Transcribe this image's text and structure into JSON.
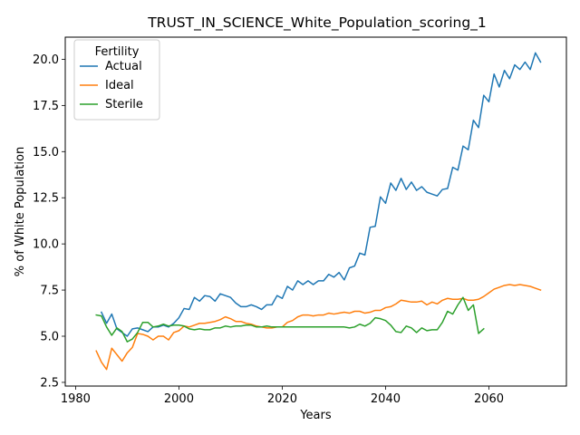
{
  "chart_data": {
    "type": "line",
    "title": "TRUST_IN_SCIENCE_White_Population_scoring_1",
    "xlabel": "Years",
    "ylabel": "% of White Population",
    "xlim": [
      1978,
      2075
    ],
    "ylim": [
      2.3,
      21.2
    ],
    "xticks": [
      1980,
      2000,
      2020,
      2040,
      2060
    ],
    "yticks": [
      2.5,
      5.0,
      7.5,
      10.0,
      12.5,
      15.0,
      17.5,
      20.0
    ],
    "legend": {
      "title": "Fertility",
      "position": "top-left"
    },
    "series": [
      {
        "name": "Actual",
        "color": "#1f77b4",
        "x": [
          1985,
          1986,
          1987,
          1988,
          1989,
          1990,
          1991,
          1992,
          1993,
          1994,
          1995,
          1996,
          1997,
          1998,
          1999,
          2000,
          2001,
          2002,
          2003,
          2004,
          2005,
          2006,
          2007,
          2008,
          2009,
          2010,
          2011,
          2012,
          2013,
          2014,
          2015,
          2016,
          2017,
          2018,
          2019,
          2020,
          2021,
          2022,
          2023,
          2024,
          2025,
          2026,
          2027,
          2028,
          2029,
          2030,
          2031,
          2032,
          2033,
          2034,
          2035,
          2036,
          2037,
          2038,
          2039,
          2040,
          2041,
          2042,
          2043,
          2044,
          2045,
          2046,
          2047,
          2048,
          2049,
          2050,
          2051,
          2052,
          2053,
          2054,
          2055,
          2056,
          2057,
          2058,
          2059,
          2060,
          2061,
          2062,
          2063,
          2064,
          2065,
          2066,
          2067,
          2068,
          2069,
          2070
        ],
        "y": [
          6.3,
          5.7,
          6.2,
          5.4,
          5.2,
          5.0,
          5.4,
          5.45,
          5.35,
          5.25,
          5.5,
          5.5,
          5.6,
          5.5,
          5.7,
          6.0,
          6.5,
          6.45,
          7.1,
          6.9,
          7.2,
          7.15,
          6.9,
          7.3,
          7.2,
          7.1,
          6.8,
          6.6,
          6.6,
          6.7,
          6.6,
          6.45,
          6.7,
          6.7,
          7.2,
          7.05,
          7.7,
          7.5,
          8.0,
          7.8,
          8.0,
          7.8,
          8.0,
          8.0,
          8.35,
          8.2,
          8.45,
          8.05,
          8.7,
          8.8,
          9.5,
          9.4,
          10.9,
          10.95,
          12.55,
          12.2,
          13.3,
          12.9,
          13.55,
          12.95,
          13.35,
          12.9,
          13.1,
          12.8,
          12.7,
          12.6,
          12.95,
          13.0,
          14.15,
          14.0,
          15.3,
          15.1,
          16.7,
          16.3,
          18.05,
          17.7,
          19.2,
          18.5,
          19.4,
          18.95,
          19.7,
          19.45,
          19.85,
          19.45,
          20.35,
          19.85
        ]
      },
      {
        "name": "Ideal",
        "color": "#ff7f0e",
        "x": [
          1984,
          1985,
          1986,
          1987,
          1988,
          1989,
          1990,
          1991,
          1992,
          1993,
          1994,
          1995,
          1996,
          1997,
          1998,
          1999,
          2000,
          2001,
          2002,
          2003,
          2004,
          2005,
          2006,
          2007,
          2008,
          2009,
          2010,
          2011,
          2012,
          2013,
          2014,
          2015,
          2016,
          2017,
          2018,
          2019,
          2020,
          2021,
          2022,
          2023,
          2024,
          2025,
          2026,
          2027,
          2028,
          2029,
          2030,
          2031,
          2032,
          2033,
          2034,
          2035,
          2036,
          2037,
          2038,
          2039,
          2040,
          2041,
          2042,
          2043,
          2044,
          2045,
          2046,
          2047,
          2048,
          2049,
          2050,
          2051,
          2052,
          2053,
          2054,
          2055,
          2056,
          2057,
          2058,
          2059,
          2060,
          2061,
          2062,
          2063,
          2064,
          2065,
          2066,
          2067,
          2068,
          2069,
          2070
        ],
        "y": [
          4.2,
          3.6,
          3.2,
          4.35,
          4.0,
          3.65,
          4.1,
          4.4,
          5.15,
          5.1,
          5.0,
          4.8,
          5.0,
          5.0,
          4.8,
          5.2,
          5.3,
          5.55,
          5.5,
          5.6,
          5.7,
          5.7,
          5.75,
          5.8,
          5.9,
          6.05,
          5.95,
          5.8,
          5.8,
          5.7,
          5.65,
          5.55,
          5.5,
          5.45,
          5.45,
          5.5,
          5.5,
          5.75,
          5.85,
          6.05,
          6.15,
          6.15,
          6.1,
          6.15,
          6.15,
          6.25,
          6.2,
          6.25,
          6.3,
          6.25,
          6.35,
          6.35,
          6.25,
          6.3,
          6.4,
          6.4,
          6.55,
          6.6,
          6.75,
          6.95,
          6.9,
          6.85,
          6.85,
          6.9,
          6.7,
          6.85,
          6.75,
          6.95,
          7.05,
          7.0,
          7.0,
          7.05,
          6.95,
          6.95,
          7.0,
          7.15,
          7.35,
          7.55,
          7.65,
          7.75,
          7.8,
          7.75,
          7.8,
          7.75,
          7.7,
          7.6,
          7.5
        ]
      },
      {
        "name": "Sterile",
        "color": "#2ca02c",
        "x": [
          1984,
          1985,
          1986,
          1987,
          1988,
          1989,
          1990,
          1991,
          1992,
          1993,
          1994,
          1995,
          1996,
          1997,
          1998,
          1999,
          2000,
          2001,
          2002,
          2003,
          2004,
          2005,
          2006,
          2007,
          2008,
          2009,
          2010,
          2011,
          2012,
          2013,
          2014,
          2015,
          2016,
          2017,
          2018,
          2019,
          2020,
          2021,
          2022,
          2023,
          2024,
          2025,
          2026,
          2027,
          2028,
          2029,
          2030,
          2031,
          2032,
          2033,
          2034,
          2035,
          2036,
          2037,
          2038,
          2039,
          2040,
          2041,
          2042,
          2043,
          2044,
          2045,
          2046,
          2047,
          2048,
          2049,
          2050,
          2051,
          2052,
          2053,
          2054,
          2055,
          2056,
          2057,
          2058,
          2059
        ],
        "y": [
          6.15,
          6.1,
          5.5,
          5.05,
          5.45,
          5.25,
          4.7,
          4.85,
          5.2,
          5.75,
          5.75,
          5.5,
          5.55,
          5.65,
          5.55,
          5.6,
          5.6,
          5.55,
          5.4,
          5.35,
          5.4,
          5.35,
          5.35,
          5.45,
          5.45,
          5.55,
          5.5,
          5.55,
          5.55,
          5.6,
          5.6,
          5.5,
          5.5,
          5.55,
          5.5,
          5.5,
          5.5,
          5.5,
          5.5,
          5.5,
          5.5,
          5.5,
          5.5,
          5.5,
          5.5,
          5.5,
          5.5,
          5.5,
          5.5,
          5.45,
          5.5,
          5.65,
          5.55,
          5.7,
          6.0,
          5.95,
          5.85,
          5.6,
          5.25,
          5.2,
          5.55,
          5.45,
          5.2,
          5.45,
          5.3,
          5.35,
          5.35,
          5.75,
          6.35,
          6.2,
          6.7,
          7.1,
          6.4,
          6.7,
          5.15,
          5.4
        ]
      }
    ]
  }
}
